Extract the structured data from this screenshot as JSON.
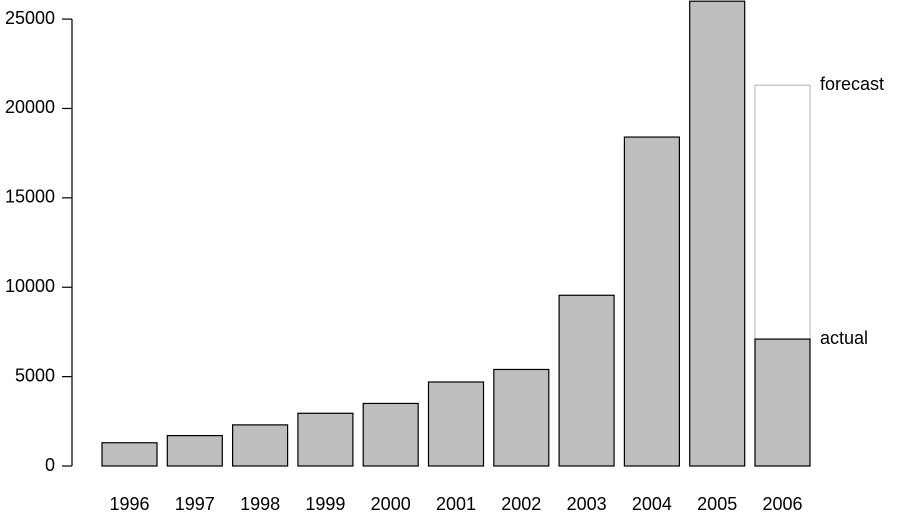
{
  "chart_data": {
    "type": "bar",
    "categories": [
      "1996",
      "1997",
      "1998",
      "1999",
      "2000",
      "2001",
      "2002",
      "2003",
      "2004",
      "2005",
      "2006"
    ],
    "series": [
      {
        "name": "forecast",
        "color": "#ffffff",
        "stroke": "#bebebe",
        "values": [
          null,
          null,
          null,
          null,
          null,
          null,
          null,
          null,
          null,
          null,
          21300
        ]
      },
      {
        "name": "actual",
        "color": "#bebebe",
        "stroke": "#000000",
        "values": [
          1300,
          1700,
          2300,
          2950,
          3500,
          4700,
          5400,
          9550,
          18400,
          26000,
          7100
        ]
      }
    ],
    "ylim": [
      0,
      26000
    ],
    "yticks": [
      0,
      5000,
      10000,
      15000,
      20000,
      25000
    ]
  }
}
